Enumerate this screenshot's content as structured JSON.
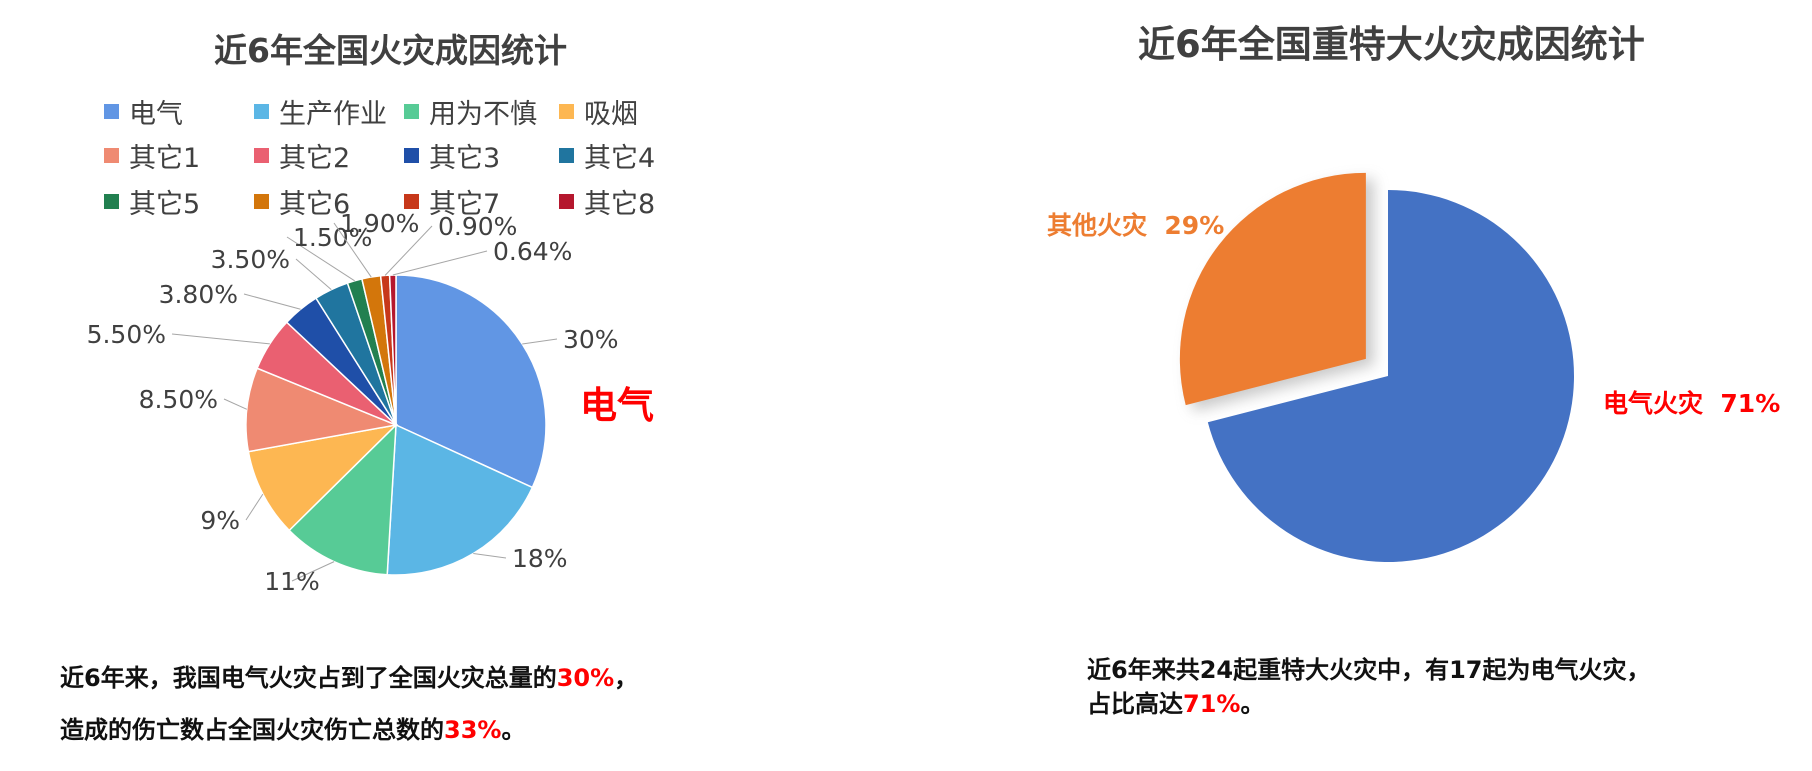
{
  "chart_data": [
    {
      "type": "pie",
      "title": "近6年全国火灾成因统计",
      "categories": [
        "电气",
        "生产作业",
        "用为不慎",
        "吸烟",
        "其它1",
        "其它2",
        "其它3",
        "其它4",
        "其它5",
        "其它6",
        "其它7",
        "其它8"
      ],
      "values": [
        30,
        18,
        11,
        9,
        8.5,
        5.5,
        3.8,
        3.5,
        1.5,
        1.9,
        0.9,
        0.64
      ],
      "data_labels": [
        "30%",
        "18%",
        "11%",
        "9%",
        "8.50%",
        "5.50%",
        "3.80%",
        "3.50%",
        "1.50%",
        "1.90%",
        "0.90%",
        "0.64%"
      ],
      "colors": [
        "#6196e4",
        "#5bb6e5",
        "#57cb96",
        "#fdb752",
        "#ef8a72",
        "#ea6071",
        "#1f4fa8",
        "#20759f",
        "#228050",
        "#d3760b",
        "#c7381a",
        "#b5172e"
      ],
      "callout": "电气",
      "legend": "top"
    },
    {
      "type": "pie",
      "title": "近6年全国重特大火灾成因统计",
      "categories": [
        "电气火灾",
        "其他火灾"
      ],
      "values": [
        71,
        29
      ],
      "data_labels": [
        "电气火灾  71%",
        "其他火灾  29%"
      ],
      "colors": [
        "#4472c4",
        "#ed7d31"
      ],
      "label_colors": [
        "#ff0000",
        "#ed7d31"
      ]
    }
  ],
  "captions": {
    "left_line1_pre": "近6年来，我国电气火灾占到了全国火灾总量的",
    "left_line1_hl": "30%",
    "left_line1_post": "，",
    "left_line2_pre": "造成的伤亡数占全国火灾伤亡总数的",
    "left_line2_hl": "33%",
    "left_line2_post": "。",
    "right_line1": "近6年来共24起重特大火灾中，有17起为电气火灾，",
    "right_line2_pre": "占比高达",
    "right_line2_hl": "71%",
    "right_line2_post": "。"
  },
  "colors": {
    "highlight": "#ff0000",
    "title": "#404040"
  }
}
